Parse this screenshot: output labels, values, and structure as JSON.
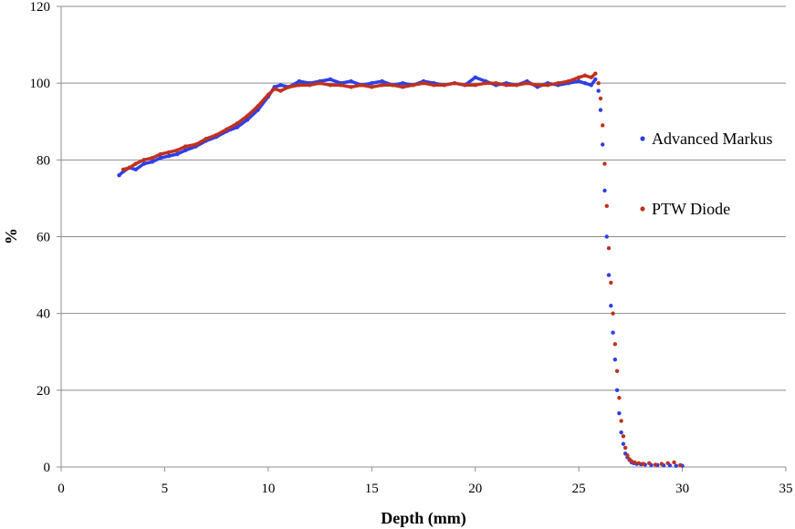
{
  "chart_data": {
    "type": "scatter",
    "title": "",
    "xlabel": "Depth (mm)",
    "ylabel": "%",
    "xlim": [
      0,
      35
    ],
    "ylim": [
      0,
      120
    ],
    "xticks": [
      0,
      5,
      10,
      15,
      20,
      25,
      30,
      35
    ],
    "yticks": [
      0,
      20,
      40,
      60,
      80,
      100,
      120
    ],
    "grid": "horizontal",
    "legend_position": "right",
    "series": [
      {
        "name": "Advanced Markus",
        "color": "#2f3fe6",
        "x": [
          2.8,
          3.0,
          3.3,
          3.6,
          4.0,
          4.4,
          4.8,
          5.2,
          5.6,
          6.0,
          6.5,
          7.0,
          7.5,
          8.0,
          8.5,
          9.0,
          9.5,
          10.0,
          10.3,
          10.6,
          11.0,
          11.5,
          12.0,
          12.5,
          13.0,
          13.5,
          14.0,
          14.5,
          15.0,
          15.5,
          16.0,
          16.5,
          17.0,
          17.5,
          18.0,
          18.5,
          19.0,
          19.5,
          20.0,
          20.5,
          21.0,
          21.5,
          22.0,
          22.5,
          23.0,
          23.5,
          24.0,
          24.5,
          25.0,
          25.3,
          25.6,
          25.8,
          25.95,
          26.05,
          26.15,
          26.25,
          26.35,
          26.45,
          26.55,
          26.65,
          26.75,
          26.85,
          26.95,
          27.05,
          27.15,
          27.25,
          27.35,
          27.45,
          27.55,
          27.65,
          27.8,
          28.0,
          28.2,
          28.5,
          28.8,
          29.1,
          29.4,
          29.7,
          30.0
        ],
        "y": [
          76,
          77,
          78,
          77.5,
          79,
          79.5,
          80.5,
          81,
          81.5,
          82.5,
          83.5,
          85,
          86,
          87.5,
          88.5,
          90.5,
          93,
          96.5,
          99,
          99.5,
          99,
          100.5,
          100,
          100.5,
          101,
          100,
          100.5,
          99.5,
          100,
          100.5,
          99.5,
          100,
          99.5,
          100.5,
          100,
          99.5,
          100,
          99.5,
          101.5,
          100.5,
          99.5,
          100,
          99.5,
          100.5,
          99,
          100,
          99.5,
          100,
          100.5,
          100,
          99.5,
          101,
          98,
          93,
          84,
          72,
          60,
          50,
          42,
          35,
          28,
          20,
          14,
          9,
          6,
          3.5,
          2.5,
          1.8,
          1.2,
          1.0,
          0.8,
          0.7,
          0.6,
          0.5,
          0.5,
          0.4,
          0.4,
          0.3,
          0.3
        ]
      },
      {
        "name": "PTW Diode",
        "color": "#c0311f",
        "x": [
          3.0,
          3.3,
          3.6,
          4.0,
          4.4,
          4.8,
          5.2,
          5.6,
          6.0,
          6.5,
          7.0,
          7.5,
          8.0,
          8.5,
          9.0,
          9.5,
          10.0,
          10.3,
          10.6,
          11.0,
          11.5,
          12.0,
          12.5,
          13.0,
          13.5,
          14.0,
          14.5,
          15.0,
          15.5,
          16.0,
          16.5,
          17.0,
          17.5,
          18.0,
          18.5,
          19.0,
          19.5,
          20.0,
          20.5,
          21.0,
          21.5,
          22.0,
          22.5,
          23.0,
          23.5,
          24.0,
          24.5,
          25.0,
          25.3,
          25.6,
          25.8,
          25.95,
          26.05,
          26.15,
          26.25,
          26.35,
          26.45,
          26.55,
          26.65,
          26.75,
          26.85,
          26.95,
          27.05,
          27.15,
          27.25,
          27.35,
          27.45,
          27.55,
          27.7,
          27.9,
          28.1,
          28.4,
          28.7,
          29.0,
          29.3,
          29.6,
          29.9
        ],
        "y": [
          77.5,
          78,
          79,
          80,
          80.5,
          81.5,
          82,
          82.5,
          83.5,
          84,
          85.5,
          86.5,
          88,
          89.5,
          91.5,
          94,
          97,
          98.5,
          98,
          99,
          99.5,
          99.5,
          100,
          99.5,
          99.5,
          99,
          99.5,
          99,
          99.5,
          99.5,
          99,
          99.5,
          100,
          99.5,
          99.5,
          100,
          99.5,
          99.5,
          100,
          100,
          99.5,
          99.5,
          100,
          99.5,
          99.5,
          100,
          100.5,
          101.5,
          102,
          101.5,
          102.5,
          100,
          96,
          89,
          79,
          68,
          57,
          48,
          40,
          32,
          25,
          18,
          12,
          8,
          5,
          3,
          2,
          1.5,
          1.2,
          1.0,
          0.8,
          1.0,
          0.6,
          0.8,
          1.0,
          1.2,
          0.5
        ]
      }
    ]
  }
}
